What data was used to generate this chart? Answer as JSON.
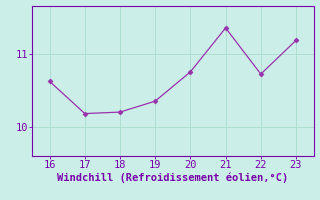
{
  "x": [
    16,
    17,
    18,
    19,
    20,
    21,
    22,
    23
  ],
  "y": [
    10.62,
    10.18,
    10.2,
    10.35,
    10.75,
    11.35,
    10.72,
    11.18
  ],
  "line_color": "#9933aa",
  "marker": "D",
  "marker_size": 2.5,
  "line_width": 0.9,
  "bg_color": "#cceee8",
  "grid_color": "#aaddcc",
  "axis_color": "#7700aa",
  "tick_color": "#7700aa",
  "xlabel": "Windchill (Refroidissement éolien,°C)",
  "xlabel_fontsize": 7.5,
  "ytick_labels": [
    "10",
    "11"
  ],
  "ytick_positions": [
    10.0,
    11.0
  ],
  "xlim": [
    15.5,
    23.5
  ],
  "ylim": [
    9.6,
    11.65
  ],
  "xticks": [
    16,
    17,
    18,
    19,
    20,
    21,
    22,
    23
  ],
  "tick_fontsize": 7.5
}
